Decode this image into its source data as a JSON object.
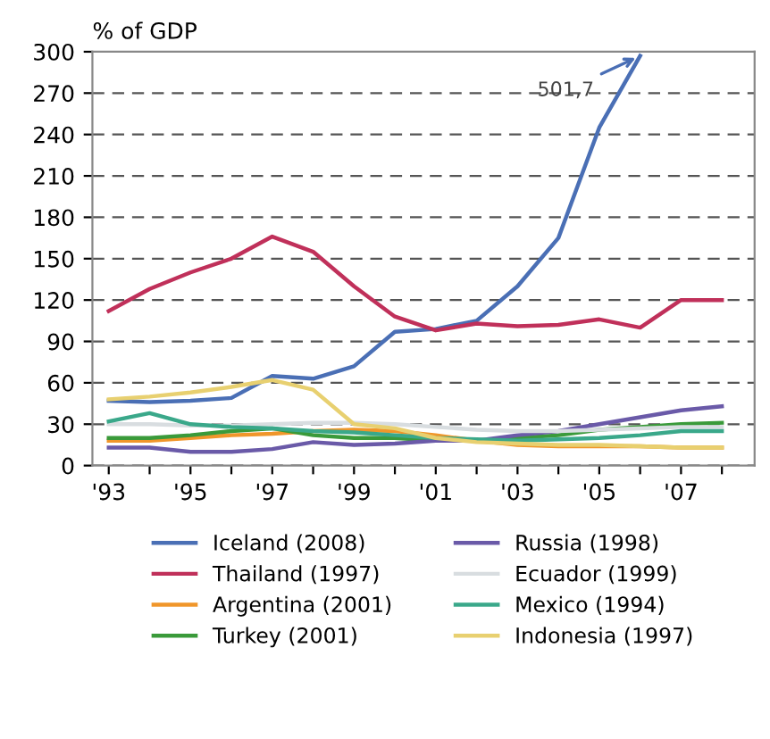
{
  "chart_data": {
    "type": "line",
    "ylabel": "% of GDP",
    "x": [
      1993,
      1994,
      1995,
      1996,
      1997,
      1998,
      1999,
      2000,
      2001,
      2002,
      2003,
      2004,
      2005,
      2006,
      2007,
      2008
    ],
    "series": [
      {
        "name": "Iceland (2008)",
        "color": "#4a6fb5",
        "values": [
          47,
          46,
          47,
          49,
          65,
          63,
          72,
          97,
          99,
          105,
          130,
          165,
          245,
          297,
          null,
          null
        ]
      },
      {
        "name": "Thailand (1997)",
        "color": "#c0305a",
        "values": [
          112,
          128,
          140,
          150,
          166,
          155,
          130,
          108,
          98,
          103,
          101,
          102,
          106,
          100,
          120,
          120
        ]
      },
      {
        "name": "Argentina (2001)",
        "color": "#f0962a",
        "values": [
          18,
          18,
          20,
          22,
          23,
          25,
          26,
          25,
          22,
          18,
          15,
          14,
          14,
          14,
          13,
          13
        ]
      },
      {
        "name": "Turkey (2001)",
        "color": "#3a9a3a",
        "values": [
          20,
          20,
          22,
          25,
          27,
          22,
          20,
          20,
          18,
          18,
          20,
          22,
          26,
          28,
          30,
          31
        ]
      },
      {
        "name": "Russia (1998)",
        "color": "#6a5aa8",
        "values": [
          13,
          13,
          10,
          10,
          12,
          17,
          15,
          16,
          18,
          18,
          22,
          25,
          30,
          35,
          40,
          43
        ]
      },
      {
        "name": "Ecuador (1999)",
        "color": "#d8dde0",
        "values": [
          30,
          30,
          29,
          29,
          30,
          31,
          31,
          30,
          28,
          26,
          25,
          25,
          26,
          27,
          28,
          28
        ]
      },
      {
        "name": "Mexico (1994)",
        "color": "#3aa88a",
        "values": [
          32,
          38,
          30,
          28,
          27,
          25,
          24,
          22,
          20,
          19,
          18,
          19,
          20,
          22,
          25,
          25
        ]
      },
      {
        "name": "Indonesia (1997)",
        "color": "#e8d070",
        "values": [
          48,
          50,
          53,
          57,
          62,
          55,
          30,
          27,
          20,
          17,
          16,
          15,
          15,
          14,
          13,
          13
        ]
      }
    ],
    "annotations": [
      {
        "text": "501,7",
        "x": 2006,
        "y": 297
      }
    ],
    "xlim": [
      1992.6,
      2008.8
    ],
    "xticks": [
      {
        "value": 1993,
        "label": "'93"
      },
      {
        "value": 1994,
        "label": null
      },
      {
        "value": 1995,
        "label": "'95"
      },
      {
        "value": 1996,
        "label": null
      },
      {
        "value": 1997,
        "label": "'97"
      },
      {
        "value": 1998,
        "label": null
      },
      {
        "value": 1999,
        "label": "'99"
      },
      {
        "value": 2000,
        "label": null
      },
      {
        "value": 2001,
        "label": "'01"
      },
      {
        "value": 2002,
        "label": null
      },
      {
        "value": 2003,
        "label": "'03"
      },
      {
        "value": 2004,
        "label": null
      },
      {
        "value": 2005,
        "label": "'05"
      },
      {
        "value": 2006,
        "label": null
      },
      {
        "value": 2007,
        "label": "'07"
      },
      {
        "value": 2008,
        "label": null
      }
    ],
    "ylim": [
      0,
      300
    ],
    "yticks": [
      0,
      30,
      60,
      90,
      120,
      150,
      180,
      210,
      240,
      270,
      300
    ],
    "grid": "y",
    "legend": "bottom",
    "line_style": "solid",
    "marker": "none"
  }
}
